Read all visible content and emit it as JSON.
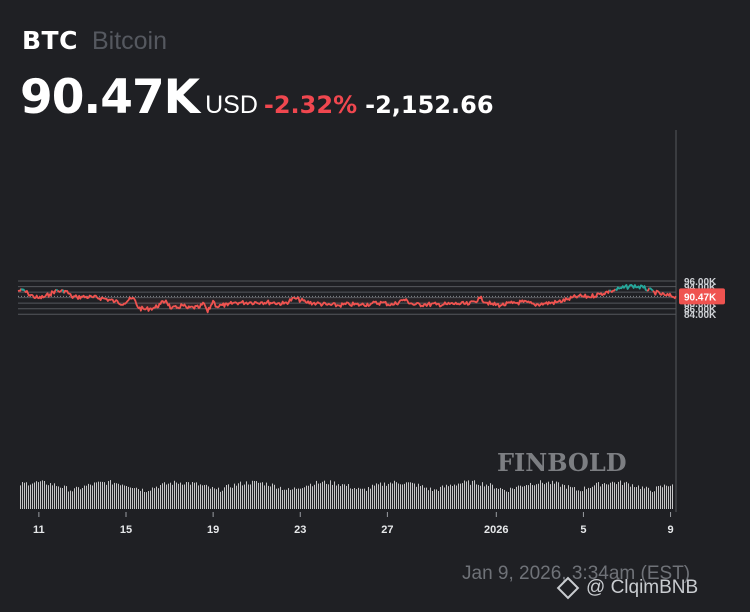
{
  "header": {
    "ticker": "BTC",
    "name": "Bitcoin",
    "price": "90.47K",
    "currency": "USD",
    "change_pct": "-2.32%",
    "change_abs": "-2,152.66"
  },
  "colors": {
    "background": "#1f2024",
    "line_down": "#ef5350",
    "line_up": "#26a69a",
    "grid": "#55575c",
    "price_tag": "#ef5350",
    "volume": "#e4e4e4"
  },
  "brand": "FINBOLD",
  "footer": {
    "timestamp": "Jan 9, 2026, 3:34am (EST)"
  },
  "watermark": {
    "text": "@ ClqimBNB",
    "icon": "binance-diamond-icon"
  },
  "chart_data": {
    "type": "line",
    "title": "BTC Bitcoin",
    "ylabel": "USD",
    "ylim": [
      83000,
      97500
    ],
    "y_ticks": [
      "96.00K",
      "94.00K",
      "92.00K",
      "90.00K",
      "88.00K",
      "86.00K",
      "84.00K"
    ],
    "y_tick_values": [
      96000,
      94000,
      92000,
      90000,
      88000,
      86000,
      84000
    ],
    "x_ticks": [
      "11",
      "15",
      "19",
      "23",
      "27",
      "2026",
      "5",
      "9"
    ],
    "x_tick_dates": [
      "2025-12-11",
      "2025-12-15",
      "2025-12-19",
      "2025-12-23",
      "2025-12-27",
      "2026-01-01",
      "2026-01-05",
      "2026-01-09"
    ],
    "xlim": [
      "2025-12-10 01:00",
      "2026-01-09 06:00"
    ],
    "current_price_label": "90.47K",
    "current_price": 90470,
    "baseline": 90470,
    "grid": true,
    "series": [
      {
        "x": [
          "2025-12-10 01:00",
          "2025-12-10 06:00",
          "2025-12-10 12:00",
          "2025-12-10 18:00",
          "2025-12-11 00:00",
          "2025-12-11 06:00",
          "2025-12-11 12:00",
          "2025-12-11 18:00",
          "2025-12-12 00:00",
          "2025-12-12 06:00",
          "2025-12-12 12:00",
          "2025-12-12 18:00",
          "2025-12-13 00:00",
          "2025-12-13 12:00",
          "2025-12-14 00:00",
          "2025-12-14 12:00",
          "2025-12-14 22:00",
          "2025-12-15 03:00",
          "2025-12-15 09:00",
          "2025-12-15 14:00",
          "2025-12-15 20:00",
          "2025-12-16 02:00",
          "2025-12-16 08:00",
          "2025-12-16 14:00",
          "2025-12-16 20:00",
          "2025-12-17 02:00",
          "2025-12-17 08:00",
          "2025-12-17 14:00",
          "2025-12-17 20:00",
          "2025-12-18 02:00",
          "2025-12-18 08:00",
          "2025-12-18 14:00",
          "2025-12-18 18:00",
          "2025-12-19 00:00",
          "2025-12-19 04:00",
          "2025-12-19 10:00",
          "2025-12-19 16:00",
          "2025-12-19 22:00",
          "2025-12-20 06:00",
          "2025-12-20 18:00",
          "2025-12-21 06:00",
          "2025-12-21 18:00",
          "2025-12-22 06:00",
          "2025-12-22 18:00",
          "2025-12-23 06:00",
          "2025-12-23 18:00",
          "2025-12-24 06:00",
          "2025-12-24 18:00",
          "2025-12-25 06:00",
          "2025-12-25 18:00",
          "2025-12-26 06:00",
          "2025-12-26 18:00",
          "2025-12-27 06:00",
          "2025-12-27 18:00",
          "2025-12-28 06:00",
          "2025-12-28 18:00",
          "2025-12-29 06:00",
          "2025-12-29 18:00",
          "2025-12-30 06:00",
          "2025-12-30 18:00",
          "2025-12-31 06:00",
          "2025-12-31 18:00",
          "2026-01-01 06:00",
          "2026-01-01 18:00",
          "2026-01-02 06:00",
          "2026-01-02 18:00",
          "2026-01-03 06:00",
          "2026-01-03 18:00",
          "2026-01-04 06:00",
          "2026-01-04 18:00",
          "2026-01-05 06:00",
          "2026-01-05 18:00",
          "2026-01-06 06:00",
          "2026-01-06 18:00",
          "2026-01-07 06:00",
          "2026-01-07 18:00",
          "2026-01-08 06:00",
          "2026-01-08 18:00",
          "2026-01-09 06:00"
        ],
        "values": [
          92400,
          92800,
          91500,
          90400,
          89800,
          90300,
          91200,
          92500,
          92300,
          92400,
          90300,
          90200,
          90300,
          90100,
          89700,
          88600,
          87900,
          89200,
          89600,
          86200,
          85800,
          86000,
          86400,
          87700,
          89000,
          86000,
          86300,
          87300,
          86100,
          86500,
          86300,
          87900,
          84700,
          88900,
          86700,
          87300,
          87200,
          88100,
          88200,
          88300,
          88400,
          88200,
          87800,
          89800,
          88400,
          87900,
          87400,
          87200,
          87600,
          87400,
          87800,
          88200,
          87400,
          89300,
          87400,
          87600,
          87500,
          87600,
          87800,
          87600,
          89800,
          87600,
          87300,
          88000,
          88400,
          87500,
          87900,
          88300,
          89300,
          90500,
          90300,
          91300,
          92400,
          93400,
          94300,
          93600,
          92000,
          90800,
          90500
        ]
      }
    ],
    "volume_shown": true
  }
}
